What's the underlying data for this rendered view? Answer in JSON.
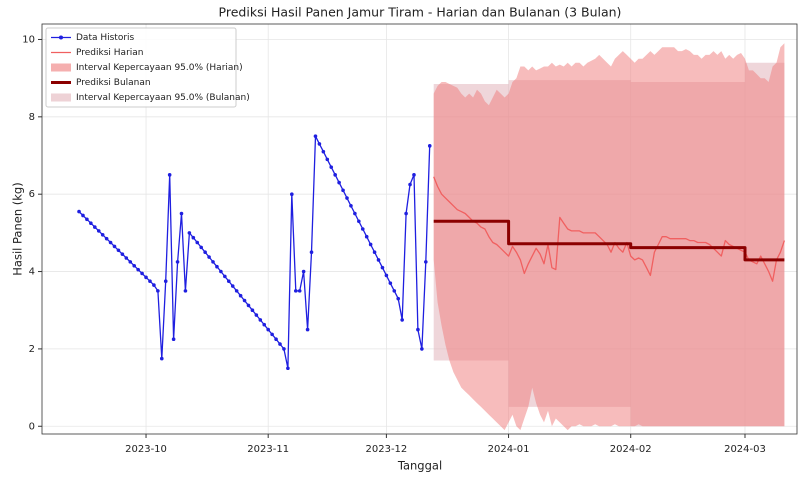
{
  "chart_data": {
    "type": "line",
    "title": "Prediksi Hasil Panen Jamur Tiram - Harian dan Bulanan (3 Bulan)",
    "xlabel": "Tanggal",
    "ylabel": "Hasil Panen (kg)",
    "xlim": [
      -9.4,
      182.2
    ],
    "ylim": [
      -0.2,
      10.4
    ],
    "xticks": [
      {
        "value": 17,
        "label": "2023-10"
      },
      {
        "value": 48,
        "label": "2023-11"
      },
      {
        "value": 78,
        "label": "2023-12"
      },
      {
        "value": 109,
        "label": "2024-01"
      },
      {
        "value": 140,
        "label": "2024-02"
      },
      {
        "value": 169,
        "label": "2024-03"
      }
    ],
    "yticks": [
      0,
      2,
      4,
      6,
      8,
      10
    ],
    "grid": true,
    "legend": "upper left",
    "series": [
      {
        "name": "Data Historis",
        "kind": "line",
        "color": "#1f1fe0",
        "linewidth": 1.3,
        "marker": true,
        "step": false,
        "x": [
          0,
          1,
          2,
          3,
          4,
          5,
          6,
          7,
          8,
          9,
          10,
          11,
          12,
          13,
          14,
          15,
          16,
          17,
          18,
          19,
          20,
          21,
          22,
          23,
          24,
          25,
          26,
          27,
          28,
          29,
          30,
          31,
          32,
          33,
          34,
          35,
          36,
          37,
          38,
          39,
          40,
          41,
          42,
          43,
          44,
          45,
          46,
          47,
          48,
          49,
          50,
          51,
          52,
          53,
          54,
          55,
          56,
          57,
          58,
          59,
          60,
          61,
          62,
          63,
          64,
          65,
          66,
          67,
          68,
          69,
          70,
          71,
          72,
          73,
          74,
          75,
          76,
          77,
          78,
          79,
          80,
          81,
          82,
          83,
          84,
          85,
          86,
          87,
          88,
          89
        ],
        "values": [
          5.55,
          5.45,
          5.35,
          5.25,
          5.15,
          5.05,
          4.95,
          4.85,
          4.75,
          4.65,
          4.55,
          4.45,
          4.35,
          4.25,
          4.15,
          4.05,
          3.95,
          3.85,
          3.75,
          3.65,
          3.5,
          1.75,
          3.75,
          6.5,
          2.25,
          4.25,
          5.5,
          3.5,
          5.0,
          4.875,
          4.75,
          4.625,
          4.5,
          4.375,
          4.25,
          4.125,
          4.0,
          3.875,
          3.75,
          3.625,
          3.5,
          3.375,
          3.25,
          3.125,
          3.0,
          2.875,
          2.75,
          2.625,
          2.5,
          2.375,
          2.25,
          2.125,
          2.0,
          1.5,
          6.0,
          3.5,
          3.5,
          4.0,
          2.5,
          4.5,
          7.5,
          7.3,
          7.1,
          6.9,
          6.7,
          6.5,
          6.3,
          6.1,
          5.9,
          5.7,
          5.5,
          5.3,
          5.1,
          4.9,
          4.7,
          4.5,
          4.3,
          4.1,
          3.9,
          3.7,
          3.5,
          3.3,
          2.75,
          5.5,
          6.25,
          6.5,
          2.5,
          2.0,
          4.25,
          7.25
        ]
      },
      {
        "name": "Prediksi Harian",
        "kind": "line",
        "color": "#f06060",
        "linewidth": 1.3,
        "marker": false,
        "step": false,
        "x": [
          90,
          91,
          92,
          93,
          94,
          95,
          96,
          97,
          98,
          99,
          100,
          101,
          102,
          103,
          104,
          105,
          106,
          107,
          108,
          109,
          110,
          111,
          112,
          113,
          114,
          115,
          116,
          117,
          118,
          119,
          120,
          121,
          122,
          123,
          124,
          125,
          126,
          127,
          128,
          129,
          130,
          131,
          132,
          133,
          134,
          135,
          136,
          137,
          138,
          139,
          140,
          141,
          142,
          143,
          144,
          145,
          146,
          147,
          148,
          149,
          150,
          151,
          152,
          153,
          154,
          155,
          156,
          157,
          158,
          159,
          160,
          161,
          162,
          163,
          164,
          165,
          166,
          167,
          168,
          169,
          170,
          171,
          172,
          173,
          174,
          175,
          176,
          177,
          178,
          179
        ],
        "values": [
          6.45,
          6.2,
          6.0,
          5.9,
          5.8,
          5.7,
          5.6,
          5.55,
          5.5,
          5.4,
          5.3,
          5.25,
          5.15,
          5.1,
          4.9,
          4.75,
          4.7,
          4.6,
          4.5,
          4.4,
          4.65,
          4.5,
          4.3,
          3.95,
          4.2,
          4.4,
          4.6,
          4.45,
          4.2,
          4.7,
          4.1,
          4.05,
          5.4,
          5.25,
          5.1,
          5.05,
          5.05,
          5.05,
          5.0,
          5.0,
          5.0,
          5.0,
          4.9,
          4.8,
          4.7,
          4.5,
          4.75,
          4.6,
          4.5,
          4.75,
          4.4,
          4.3,
          4.35,
          4.3,
          4.1,
          3.9,
          4.5,
          4.7,
          4.9,
          4.9,
          4.85,
          4.85,
          4.85,
          4.85,
          4.85,
          4.8,
          4.8,
          4.75,
          4.75,
          4.75,
          4.7,
          4.6,
          4.5,
          4.4,
          4.8,
          4.7,
          4.65,
          4.6,
          4.55,
          4.5,
          4.3,
          4.25,
          4.2,
          4.4,
          4.2,
          4.0,
          3.75,
          4.3,
          4.5,
          4.8
        ]
      },
      {
        "name": "Interval Kepercayaan 95.0% (Harian)",
        "kind": "band",
        "color": "#ef7a7a",
        "step": false,
        "x": [
          90,
          91,
          92,
          93,
          94,
          95,
          96,
          97,
          98,
          99,
          100,
          101,
          102,
          103,
          104,
          105,
          106,
          107,
          108,
          109,
          110,
          111,
          112,
          113,
          114,
          115,
          116,
          117,
          118,
          119,
          120,
          121,
          122,
          123,
          124,
          125,
          126,
          127,
          128,
          129,
          130,
          131,
          132,
          133,
          134,
          135,
          136,
          137,
          138,
          139,
          140,
          141,
          142,
          143,
          144,
          145,
          146,
          147,
          148,
          149,
          150,
          151,
          152,
          153,
          154,
          155,
          156,
          157,
          158,
          159,
          160,
          161,
          162,
          163,
          164,
          165,
          166,
          167,
          168,
          169,
          170,
          171,
          172,
          173,
          174,
          175,
          176,
          177,
          178,
          179
        ],
        "lower": [
          4.3,
          3.2,
          2.6,
          2.1,
          1.7,
          1.4,
          1.2,
          1.0,
          0.9,
          0.8,
          0.7,
          0.6,
          0.5,
          0.4,
          0.3,
          0.2,
          0.1,
          0.0,
          -0.1,
          0.1,
          0.3,
          0.0,
          -0.1,
          0.2,
          0.5,
          1.0,
          0.6,
          0.3,
          0.1,
          0.4,
          0.0,
          0.2,
          0.1,
          0.0,
          -0.1,
          0.0,
          0.0,
          0.05,
          0.0,
          0.0,
          0.0,
          0.05,
          0.0,
          0.0,
          0.0,
          0.0,
          0.05,
          0.0,
          0.0,
          0.0,
          0.0,
          0.0,
          0.05,
          0.0,
          0.0,
          0.0,
          0.0,
          0.0,
          0.0,
          0.0,
          0.0,
          0.0,
          0.0,
          0.0,
          0.0,
          0.0,
          0.0,
          0.0,
          0.0,
          0.0,
          0.0,
          0.0,
          0.0,
          0.0,
          0.0,
          0.0,
          0.0,
          0.0,
          0.0,
          0.0,
          0.0,
          0.0,
          0.0,
          0.0,
          0.0,
          0.0,
          0.0,
          0.0,
          0.0,
          0.0
        ],
        "upper": [
          8.6,
          8.8,
          8.9,
          8.9,
          8.85,
          8.8,
          8.75,
          8.6,
          8.5,
          8.6,
          8.5,
          8.7,
          8.6,
          8.4,
          8.3,
          8.5,
          8.7,
          8.6,
          8.5,
          8.6,
          8.9,
          9.0,
          9.3,
          9.3,
          9.2,
          9.3,
          9.2,
          9.25,
          9.3,
          9.3,
          9.4,
          9.3,
          9.35,
          9.3,
          9.4,
          9.3,
          9.4,
          9.4,
          9.3,
          9.4,
          9.45,
          9.5,
          9.6,
          9.5,
          9.4,
          9.3,
          9.5,
          9.6,
          9.7,
          9.6,
          9.5,
          9.4,
          9.5,
          9.5,
          9.6,
          9.7,
          9.6,
          9.7,
          9.8,
          9.8,
          9.8,
          9.8,
          9.7,
          9.7,
          9.75,
          9.7,
          9.6,
          9.6,
          9.5,
          9.6,
          9.6,
          9.7,
          9.6,
          9.7,
          9.5,
          9.6,
          9.5,
          9.6,
          9.65,
          9.5,
          9.2,
          9.2,
          9.1,
          9.0,
          9.0,
          8.9,
          9.3,
          9.4,
          9.8,
          9.9
        ]
      },
      {
        "name": "Prediksi Bulanan",
        "kind": "line",
        "color": "#8b0000",
        "linewidth": 3,
        "marker": false,
        "step": true,
        "x": [
          90,
          109,
          140,
          169,
          179
        ],
        "values": [
          5.3,
          4.72,
          4.62,
          4.3,
          4.3
        ]
      },
      {
        "name": "Interval Kepercayaan 95.0% (Bulanan)",
        "kind": "band",
        "color": "#e2b4bb",
        "step": true,
        "x": [
          90,
          109,
          140,
          169,
          179
        ],
        "lower": [
          1.7,
          0.5,
          0.0,
          0.0,
          0.0
        ],
        "upper": [
          8.85,
          8.95,
          8.9,
          9.4,
          9.4
        ]
      }
    ]
  }
}
